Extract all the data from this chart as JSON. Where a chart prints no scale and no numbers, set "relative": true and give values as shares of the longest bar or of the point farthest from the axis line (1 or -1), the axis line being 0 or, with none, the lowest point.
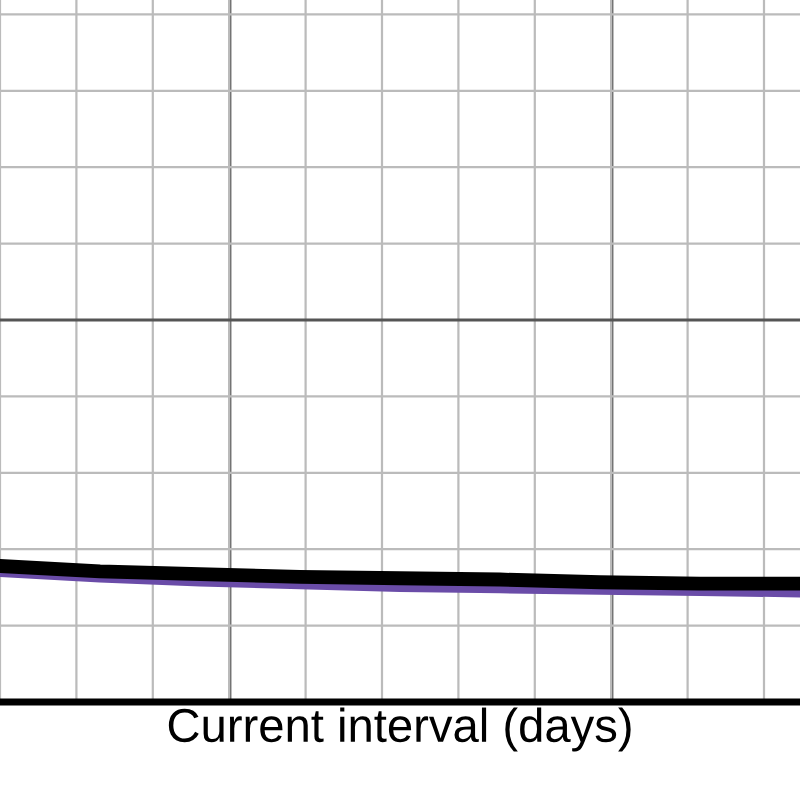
{
  "chart_data": {
    "type": "line",
    "relative": true,
    "xlabel": "Current interval (days)",
    "categories": [
      null,
      null,
      null,
      null,
      null,
      null,
      null,
      null,
      null
    ],
    "grid": true,
    "tick_labels": false,
    "series": [
      {
        "color": "#6a4ca8",
        "values": [
          0.97,
          0.93,
          0.9,
          0.88,
          0.86,
          0.85,
          0.84,
          0.83,
          0.82
        ]
      },
      {
        "color": "#000000",
        "values": [
          1.0,
          0.96,
          0.94,
          0.92,
          0.91,
          0.9,
          0.88,
          0.87,
          0.87
        ]
      }
    ]
  }
}
